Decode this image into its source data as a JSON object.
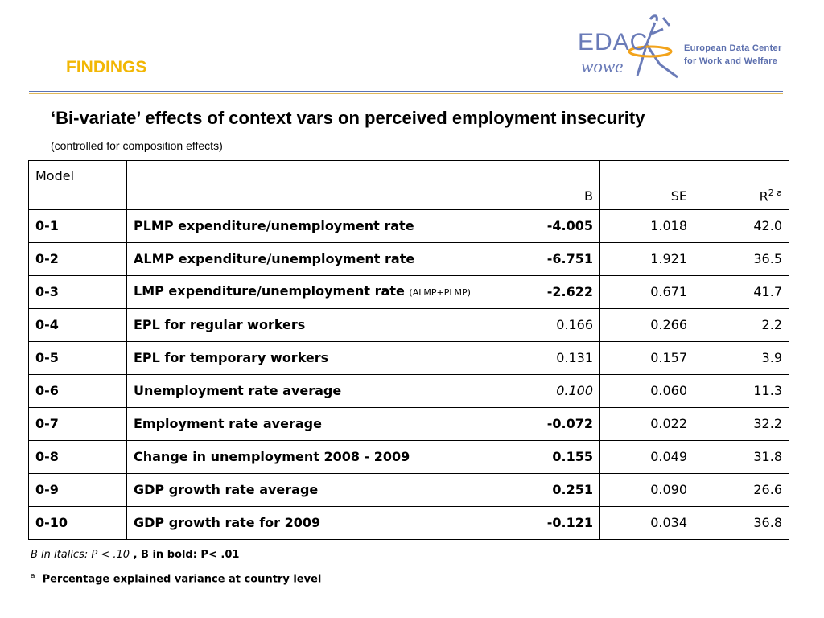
{
  "header": {
    "section_title": "FINDINGS",
    "logo": {
      "name_top": "EDAC",
      "name_bottom": "wowe",
      "line1": "European Data Center",
      "line2": "for Work and Welfare",
      "icon": "figure-with-ring-icon",
      "colors": {
        "blue": "#6a7bb8",
        "orange": "#f2a31b"
      }
    }
  },
  "title": "‘Bi-variate’ effects of context vars on perceived employment insecurity",
  "subtitle_note": "(controlled for composition effects)",
  "table": {
    "headers": {
      "model": "Model",
      "variable": "",
      "b": "B",
      "se": "SE",
      "r2": "R",
      "r2_sup": "2 a"
    },
    "rows": [
      {
        "model": "0-1",
        "variable": "PLMP expenditure/unemployment rate",
        "variable_note": "",
        "b": "-4.005",
        "b_style": "bold",
        "se": "1.018",
        "r2": "42.0"
      },
      {
        "model": "0-2",
        "variable": "ALMP expenditure/unemployment rate",
        "variable_note": "",
        "b": "-6.751",
        "b_style": "bold",
        "se": "1.921",
        "r2": "36.5"
      },
      {
        "model": "0-3",
        "variable": "LMP expenditure/unemployment rate",
        "variable_note": "(ALMP+PLMP)",
        "b": "-2.622",
        "b_style": "bold",
        "se": "0.671",
        "r2": "41.7"
      },
      {
        "model": "0-4",
        "variable": "EPL for regular workers",
        "variable_note": "",
        "b": "0.166",
        "b_style": "normal",
        "se": "0.266",
        "r2": "2.2"
      },
      {
        "model": "0-5",
        "variable": "EPL for temporary workers",
        "variable_note": "",
        "b": "0.131",
        "b_style": "normal",
        "se": "0.157",
        "r2": "3.9"
      },
      {
        "model": "0-6",
        "variable": "Unemployment rate average",
        "variable_note": "",
        "b": "0.100",
        "b_style": "italic",
        "se": "0.060",
        "r2": "11.3"
      },
      {
        "model": "0-7",
        "variable": "Employment rate average",
        "variable_note": "",
        "b": "-0.072",
        "b_style": "bold",
        "se": "0.022",
        "r2": "32.2"
      },
      {
        "model": "0-8",
        "variable": "Change in unemployment 2008 - 2009",
        "variable_note": "",
        "b": "0.155",
        "b_style": "bold",
        "se": "0.049",
        "r2": "31.8"
      },
      {
        "model": "0-9",
        "variable": "GDP growth rate average",
        "variable_note": "",
        "b": "0.251",
        "b_style": "bold",
        "se": "0.090",
        "r2": "26.6"
      },
      {
        "model": "0-10",
        "variable": "GDP growth rate for 2009",
        "variable_note": "",
        "b": "-0.121",
        "b_style": "bold",
        "se": "0.034",
        "r2": "36.8"
      }
    ]
  },
  "footnotes": {
    "line1_italic": "B in italics: P < .10",
    "line1_bold": " , B in bold: P< .01",
    "line2_sup": "a",
    "line2_text": "Percentage explained variance at country level"
  }
}
